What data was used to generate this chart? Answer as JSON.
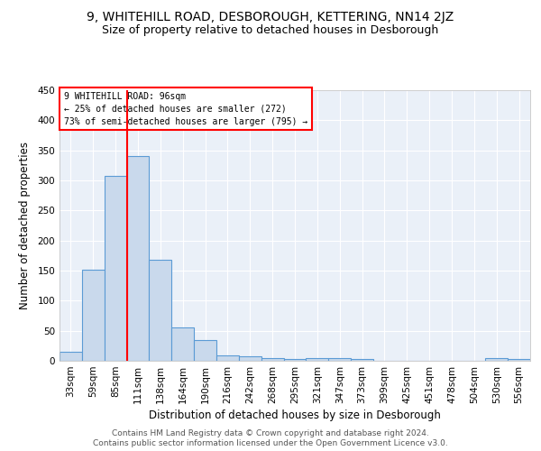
{
  "title1": "9, WHITEHILL ROAD, DESBOROUGH, KETTERING, NN14 2JZ",
  "title2": "Size of property relative to detached houses in Desborough",
  "xlabel": "Distribution of detached houses by size in Desborough",
  "ylabel": "Number of detached properties",
  "categories": [
    "33sqm",
    "59sqm",
    "85sqm",
    "111sqm",
    "138sqm",
    "164sqm",
    "190sqm",
    "216sqm",
    "242sqm",
    "268sqm",
    "295sqm",
    "321sqm",
    "347sqm",
    "373sqm",
    "399sqm",
    "425sqm",
    "451sqm",
    "478sqm",
    "504sqm",
    "530sqm",
    "556sqm"
  ],
  "values": [
    15,
    152,
    307,
    340,
    168,
    56,
    35,
    9,
    7,
    5,
    3,
    4,
    5,
    3,
    0,
    0,
    0,
    0,
    0,
    4,
    3
  ],
  "bar_color": "#c9d9ec",
  "bar_edge_color": "#5b9bd5",
  "red_line_x": 2.5,
  "annotation_text1": "9 WHITEHILL ROAD: 96sqm",
  "annotation_text2": "← 25% of detached houses are smaller (272)",
  "annotation_text3": "73% of semi-detached houses are larger (795) →",
  "annotation_box_color": "white",
  "annotation_border_color": "red",
  "footer1": "Contains HM Land Registry data © Crown copyright and database right 2024.",
  "footer2": "Contains public sector information licensed under the Open Government Licence v3.0.",
  "ylim": [
    0,
    450
  ],
  "yticks": [
    0,
    50,
    100,
    150,
    200,
    250,
    300,
    350,
    400,
    450
  ],
  "bg_color": "#eaf0f8",
  "grid_color": "white",
  "title1_fontsize": 10,
  "title2_fontsize": 9,
  "axis_label_fontsize": 8.5,
  "tick_fontsize": 7.5,
  "footer_fontsize": 6.5
}
